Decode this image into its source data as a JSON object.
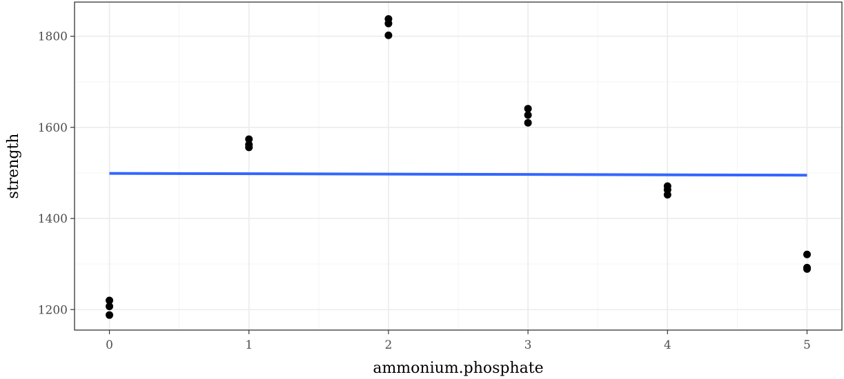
{
  "chart_data": {
    "type": "scatter",
    "title": "",
    "xlabel": "ammonium.phosphate",
    "ylabel": "strength",
    "xlim": [
      -0.25,
      5.25
    ],
    "ylim": [
      1155,
      1875
    ],
    "x_ticks": [
      0,
      1,
      2,
      3,
      4,
      5
    ],
    "x_tick_labels": [
      "0",
      "1",
      "2",
      "3",
      "4",
      "5"
    ],
    "y_ticks": [
      1200,
      1400,
      1600,
      1800
    ],
    "y_tick_labels": [
      "1200",
      "1400",
      "1600",
      "1800"
    ],
    "x_minor_ticks": [
      0.5,
      1.5,
      2.5,
      3.5,
      4.5
    ],
    "y_minor_ticks": [
      1300,
      1500,
      1700
    ],
    "grid": true,
    "points": [
      {
        "x": 0,
        "y": 1220
      },
      {
        "x": 0,
        "y": 1207
      },
      {
        "x": 0,
        "y": 1188
      },
      {
        "x": 1,
        "y": 1574
      },
      {
        "x": 1,
        "y": 1562
      },
      {
        "x": 1,
        "y": 1556
      },
      {
        "x": 2,
        "y": 1838
      },
      {
        "x": 2,
        "y": 1828
      },
      {
        "x": 2,
        "y": 1802
      },
      {
        "x": 3,
        "y": 1641
      },
      {
        "x": 3,
        "y": 1627
      },
      {
        "x": 3,
        "y": 1610
      },
      {
        "x": 4,
        "y": 1471
      },
      {
        "x": 4,
        "y": 1463
      },
      {
        "x": 4,
        "y": 1452
      },
      {
        "x": 5,
        "y": 1321
      },
      {
        "x": 5,
        "y": 1292
      },
      {
        "x": 5,
        "y": 1289
      }
    ],
    "fit_line": {
      "x": [
        0,
        5
      ],
      "y": [
        1499,
        1495
      ]
    },
    "colors": {
      "points": "#000000",
      "fit_line": "#3366ff",
      "grid_major": "#ebebeb",
      "grid_minor": "#f5f5f5",
      "panel_border": "#333333",
      "tick_text": "#4d4d4d"
    }
  }
}
